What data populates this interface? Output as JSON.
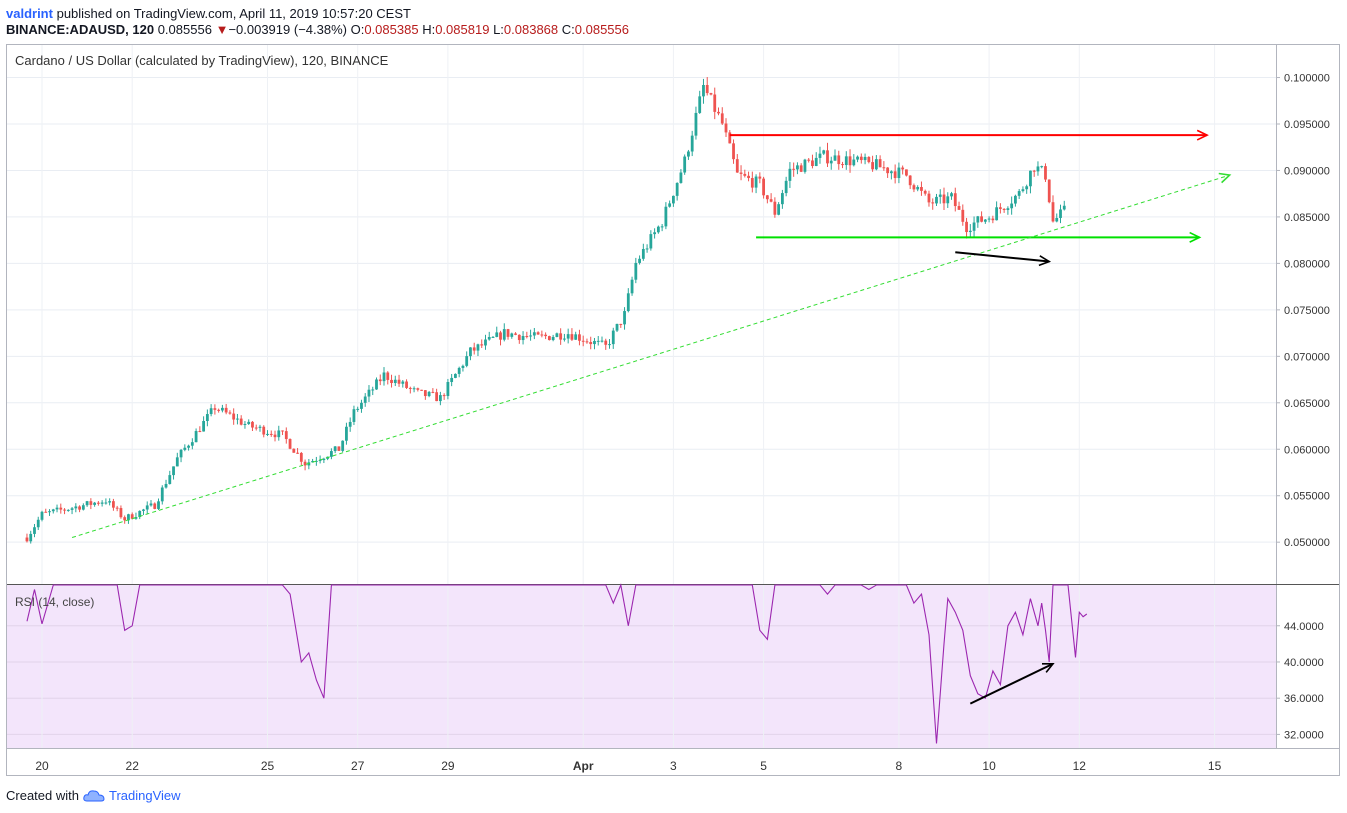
{
  "header": {
    "user": "valdrint",
    "published": "published on TradingView.com, April 11, 2019 10:57:20 CEST",
    "symbol": "BINANCE:ADAUSD, 120",
    "last": "0.085556",
    "change_arrow": "▼",
    "change": "−0.003919 (−4.38%)",
    "open_label": "O:",
    "open": "0.085385",
    "high_label": "H:",
    "high": "0.085819",
    "low_label": "L:",
    "low": "0.083868",
    "close_label": "C:",
    "close": "0.085556"
  },
  "legend": {
    "main": "Cardano / US Dollar (calculated by TradingView), 120, BINANCE",
    "rsi": "RSI (14, close)"
  },
  "footer": {
    "created_with": "Created with",
    "brand": "TradingView",
    "logo_icon": "tradingview-cloud-icon"
  },
  "colors": {
    "up": "#26a69a",
    "down": "#ef5350",
    "resistance": "#ff0000",
    "support": "#00e000",
    "trendline": "#33dd33",
    "divergence": "#000000",
    "rsi": "#9c27b0",
    "rsi_bg": "#f3e5fb"
  },
  "chart_data": [
    {
      "type": "candlestick",
      "title": "Cardano / US Dollar (calculated by TradingView), 120, BINANCE",
      "x_start": "2019-03-19T16:00",
      "interval_minutes": 120,
      "ylim": [
        0.0455,
        0.1035
      ],
      "y_ticks": [
        "0.100000",
        "0.095000",
        "0.090000",
        "0.085000",
        "0.080000",
        "0.075000",
        "0.070000",
        "0.065000",
        "0.060000",
        "0.055000",
        "0.050000"
      ],
      "x_ticks": [
        {
          "label": "20",
          "t": "2019-03-20"
        },
        {
          "label": "22",
          "t": "2019-03-22"
        },
        {
          "label": "25",
          "t": "2019-03-25"
        },
        {
          "label": "27",
          "t": "2019-03-27"
        },
        {
          "label": "29",
          "t": "2019-03-29"
        },
        {
          "label": "Apr",
          "t": "2019-04-01"
        },
        {
          "label": "3",
          "t": "2019-04-03"
        },
        {
          "label": "5",
          "t": "2019-04-05"
        },
        {
          "label": "8",
          "t": "2019-04-08"
        },
        {
          "label": "10",
          "t": "2019-04-10"
        },
        {
          "label": "12",
          "t": "2019-04-12"
        },
        {
          "label": "15",
          "t": "2019-04-15"
        }
      ],
      "waypoints": [
        {
          "t": "2019-03-19T16:00",
          "p": 0.0505
        },
        {
          "t": "2019-03-20T00:00",
          "p": 0.053
        },
        {
          "t": "2019-03-21T10:00",
          "p": 0.0545
        },
        {
          "t": "2019-03-21T20:00",
          "p": 0.0525
        },
        {
          "t": "2019-03-22T12:00",
          "p": 0.054
        },
        {
          "t": "2019-03-23T00:00",
          "p": 0.059
        },
        {
          "t": "2019-03-23T20:00",
          "p": 0.0645
        },
        {
          "t": "2019-03-24T14:00",
          "p": 0.0625
        },
        {
          "t": "2019-03-25T08:00",
          "p": 0.0615
        },
        {
          "t": "2019-03-25T20:00",
          "p": 0.0585
        },
        {
          "t": "2019-03-26T14:00",
          "p": 0.06
        },
        {
          "t": "2019-03-26T22:00",
          "p": 0.064
        },
        {
          "t": "2019-03-27T14:00",
          "p": 0.068
        },
        {
          "t": "2019-03-28T08:00",
          "p": 0.066
        },
        {
          "t": "2019-03-28T20:00",
          "p": 0.0655
        },
        {
          "t": "2019-03-29T12:00",
          "p": 0.0705
        },
        {
          "t": "2019-03-30T06:00",
          "p": 0.0725
        },
        {
          "t": "2019-03-31T00:00",
          "p": 0.072
        },
        {
          "t": "2019-03-31T16:00",
          "p": 0.0725
        },
        {
          "t": "2019-04-01T12:00",
          "p": 0.071
        },
        {
          "t": "2019-04-01T22:00",
          "p": 0.0745
        },
        {
          "t": "2019-04-02T04:00",
          "p": 0.08
        },
        {
          "t": "2019-04-02T18:00",
          "p": 0.0845
        },
        {
          "t": "2019-04-03T06:00",
          "p": 0.091
        },
        {
          "t": "2019-04-03T16:00",
          "p": 0.099
        },
        {
          "t": "2019-04-04T02:00",
          "p": 0.095
        },
        {
          "t": "2019-04-04T10:00",
          "p": 0.0895
        },
        {
          "t": "2019-04-04T22:00",
          "p": 0.0885
        },
        {
          "t": "2019-04-05T06:00",
          "p": 0.0855
        },
        {
          "t": "2019-04-05T14:00",
          "p": 0.09
        },
        {
          "t": "2019-04-06T08:00",
          "p": 0.0915
        },
        {
          "t": "2019-04-07T00:00",
          "p": 0.091
        },
        {
          "t": "2019-04-07T12:00",
          "p": 0.0905
        },
        {
          "t": "2019-04-08T04:00",
          "p": 0.0895
        },
        {
          "t": "2019-04-08T16:00",
          "p": 0.0865
        },
        {
          "t": "2019-04-09T04:00",
          "p": 0.087
        },
        {
          "t": "2019-04-09T12:00",
          "p": 0.084
        },
        {
          "t": "2019-04-10T00:00",
          "p": 0.085
        },
        {
          "t": "2019-04-10T16:00",
          "p": 0.0875
        },
        {
          "t": "2019-04-11T00:00",
          "p": 0.0905
        },
        {
          "t": "2019-04-11T06:00",
          "p": 0.0895
        },
        {
          "t": "2019-04-11T10:00",
          "p": 0.0845
        },
        {
          "t": "2019-04-11T16:00",
          "p": 0.0856
        }
      ],
      "lines": [
        {
          "name": "resistance",
          "color": "#ff0000",
          "arrow": true,
          "from": {
            "t": "2019-04-04T06:00",
            "p": 0.0938
          },
          "to": {
            "t": "2019-04-14T20:00",
            "p": 0.0938
          }
        },
        {
          "name": "support",
          "color": "#00e000",
          "arrow": true,
          "from": {
            "t": "2019-04-04T20:00",
            "p": 0.0828
          },
          "to": {
            "t": "2019-04-14T16:00",
            "p": 0.0828
          }
        },
        {
          "name": "trendline",
          "color": "#33dd33",
          "dashed": true,
          "arrow": true,
          "from": {
            "t": "2019-03-20T16:00",
            "p": 0.0505
          },
          "to": {
            "t": "2019-04-15T08:00",
            "p": 0.0895
          }
        },
        {
          "name": "price-divergence",
          "color": "#000000",
          "arrow": true,
          "from": {
            "t": "2019-04-09T06:00",
            "p": 0.0812
          },
          "to": {
            "t": "2019-04-11T08:00",
            "p": 0.0802
          }
        }
      ]
    },
    {
      "type": "line",
      "title": "RSI (14, close)",
      "ylim": [
        30.5,
        48.5
      ],
      "y_ticks": [
        "44.0000",
        "40.0000",
        "36.0000",
        "32.0000"
      ],
      "series": [
        {
          "name": "RSI (14, close)",
          "points": [
            {
              "t": "2019-03-19T16:00",
              "v": 44.5
            },
            {
              "t": "2019-03-19T20:00",
              "v": 48.0
            },
            {
              "t": "2019-03-20T00:00",
              "v": 44.2
            },
            {
              "t": "2019-03-20T06:00",
              "v": 49.5
            },
            {
              "t": "2019-03-21T16:00",
              "v": 49.5
            },
            {
              "t": "2019-03-21T20:00",
              "v": 43.5
            },
            {
              "t": "2019-03-22T00:00",
              "v": 44.0
            },
            {
              "t": "2019-03-22T04:00",
              "v": 50.0
            },
            {
              "t": "2019-03-25T08:00",
              "v": 49.5
            },
            {
              "t": "2019-03-25T12:00",
              "v": 47.5
            },
            {
              "t": "2019-03-25T18:00",
              "v": 40.0
            },
            {
              "t": "2019-03-25T22:00",
              "v": 41.0
            },
            {
              "t": "2019-03-26T02:00",
              "v": 38.0
            },
            {
              "t": "2019-03-26T06:00",
              "v": 36.0
            },
            {
              "t": "2019-03-26T10:00",
              "v": 50.0
            },
            {
              "t": "2019-04-01T12:00",
              "v": 50.0
            },
            {
              "t": "2019-04-01T16:00",
              "v": 46.5
            },
            {
              "t": "2019-04-01T20:00",
              "v": 48.5
            },
            {
              "t": "2019-04-02T00:00",
              "v": 44.0
            },
            {
              "t": "2019-04-02T04:00",
              "v": 50.0
            },
            {
              "t": "2019-04-04T18:00",
              "v": 50.0
            },
            {
              "t": "2019-04-04T22:00",
              "v": 43.5
            },
            {
              "t": "2019-04-05T02:00",
              "v": 42.5
            },
            {
              "t": "2019-04-05T06:00",
              "v": 50.0
            },
            {
              "t": "2019-04-06T06:00",
              "v": 50.0
            },
            {
              "t": "2019-04-06T10:00",
              "v": 47.5
            },
            {
              "t": "2019-04-06T14:00",
              "v": 50.0
            },
            {
              "t": "2019-04-07T04:00",
              "v": 50.0
            },
            {
              "t": "2019-04-07T08:00",
              "v": 48.0
            },
            {
              "t": "2019-04-07T12:00",
              "v": 50.0
            },
            {
              "t": "2019-04-08T00:00",
              "v": 50.0
            },
            {
              "t": "2019-04-08T04:00",
              "v": 48.5
            },
            {
              "t": "2019-04-08T08:00",
              "v": 46.5
            },
            {
              "t": "2019-04-08T12:00",
              "v": 47.5
            },
            {
              "t": "2019-04-08T16:00",
              "v": 43.0
            },
            {
              "t": "2019-04-08T20:00",
              "v": 31.0
            },
            {
              "t": "2019-04-09T00:00",
              "v": 42.0
            },
            {
              "t": "2019-04-09T02:00",
              "v": 47.0
            },
            {
              "t": "2019-04-09T06:00",
              "v": 45.5
            },
            {
              "t": "2019-04-09T10:00",
              "v": 43.5
            },
            {
              "t": "2019-04-09T14:00",
              "v": 38.5
            },
            {
              "t": "2019-04-09T18:00",
              "v": 36.5
            },
            {
              "t": "2019-04-09T22:00",
              "v": 36.0
            },
            {
              "t": "2019-04-10T02:00",
              "v": 39.0
            },
            {
              "t": "2019-04-10T06:00",
              "v": 37.5
            },
            {
              "t": "2019-04-10T10:00",
              "v": 44.0
            },
            {
              "t": "2019-04-10T14:00",
              "v": 45.5
            },
            {
              "t": "2019-04-10T18:00",
              "v": 43.0
            },
            {
              "t": "2019-04-10T22:00",
              "v": 47.0
            },
            {
              "t": "2019-04-11T02:00",
              "v": 44.0
            },
            {
              "t": "2019-04-11T04:00",
              "v": 46.5
            },
            {
              "t": "2019-04-11T06:00",
              "v": 43.5
            },
            {
              "t": "2019-04-11T08:00",
              "v": 40.0
            },
            {
              "t": "2019-04-11T10:00",
              "v": 50.0
            },
            {
              "t": "2019-04-11T18:00",
              "v": 50.0
            },
            {
              "t": "2019-04-11T22:00",
              "v": 40.5
            },
            {
              "t": "2019-04-12T00:00",
              "v": 45.5
            },
            {
              "t": "2019-04-12T02:00",
              "v": 45.0
            },
            {
              "t": "2019-04-12T04:00",
              "v": 45.3
            }
          ]
        }
      ],
      "lines": [
        {
          "name": "rsi-divergence",
          "color": "#000000",
          "arrow": true,
          "from": {
            "t": "2019-04-09T14:00",
            "v": 35.4
          },
          "to": {
            "t": "2019-04-11T10:00",
            "v": 39.8
          }
        }
      ]
    }
  ]
}
